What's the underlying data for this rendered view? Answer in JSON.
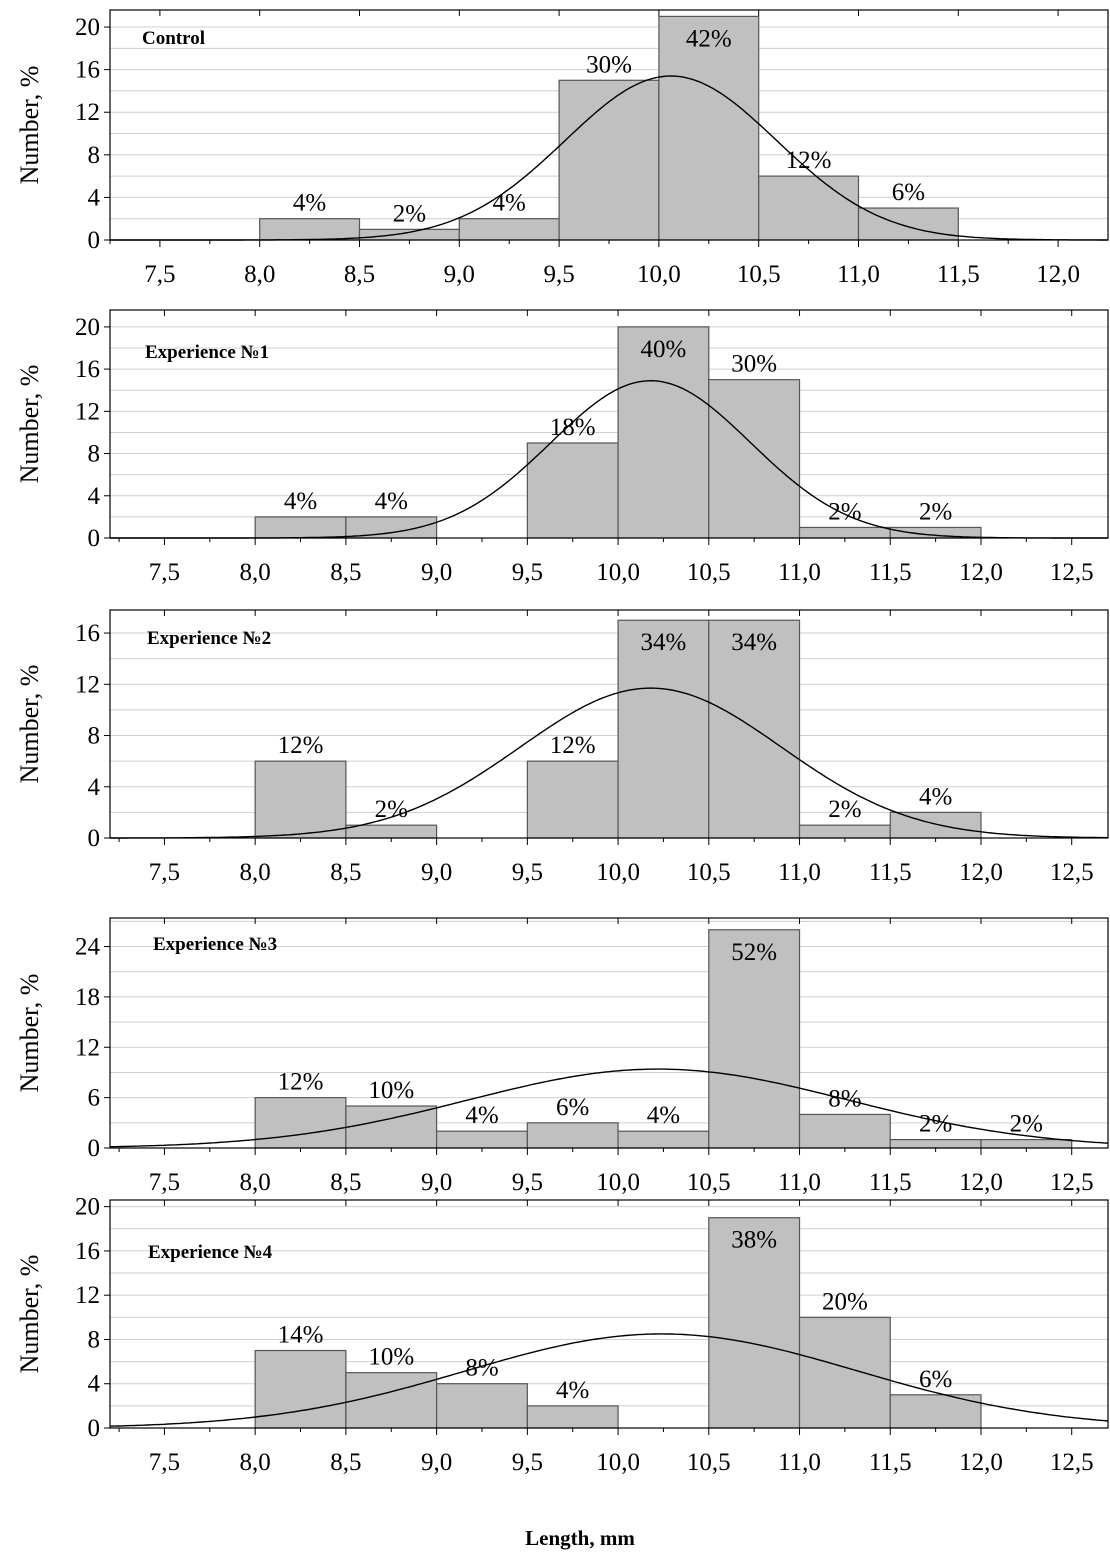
{
  "chart_data": [
    {
      "type": "bar",
      "title": "Control",
      "ylabel": "Number, %",
      "ylim": [
        0,
        21.6
      ],
      "yticks": [
        0,
        4,
        8,
        12,
        16,
        20
      ],
      "xlim": [
        7.25,
        12.25
      ],
      "xticks": [
        "7,5",
        "8,0",
        "8,5",
        "9,0",
        "9,5",
        "10,0",
        "10,5",
        "11,0",
        "11,5",
        "12,0"
      ],
      "bars": [
        {
          "range": [
            8.0,
            8.5
          ],
          "value": 2,
          "label": "4%"
        },
        {
          "range": [
            8.5,
            9.0
          ],
          "value": 1,
          "label": "2%"
        },
        {
          "range": [
            9.0,
            9.5
          ],
          "value": 2,
          "label": "4%"
        },
        {
          "range": [
            9.5,
            10.0
          ],
          "value": 15,
          "label": "30%"
        },
        {
          "range": [
            10.0,
            10.5
          ],
          "value": 21,
          "label": "42%"
        },
        {
          "range": [
            10.5,
            11.0
          ],
          "value": 6,
          "label": "12%"
        },
        {
          "range": [
            11.0,
            11.5
          ],
          "value": 3,
          "label": "6%"
        }
      ],
      "normal_curve": {
        "mean": 10.06,
        "sd": 0.53,
        "peak": 15.4
      }
    },
    {
      "type": "bar",
      "title": "Experience №1",
      "ylabel": "Number, %",
      "ylim": [
        0,
        21.6
      ],
      "yticks": [
        0,
        4,
        8,
        12,
        16,
        20
      ],
      "xlim": [
        7.2,
        12.7
      ],
      "xticks": [
        "7,5",
        "8,0",
        "8,5",
        "9,0",
        "9,5",
        "10,0",
        "10,5",
        "11,0",
        "11,5",
        "12,0",
        "12,5"
      ],
      "bars": [
        {
          "range": [
            8.0,
            8.5
          ],
          "value": 2,
          "label": "4%"
        },
        {
          "range": [
            8.5,
            9.0
          ],
          "value": 2,
          "label": "4%"
        },
        {
          "range": [
            9.5,
            10.0
          ],
          "value": 9,
          "label": "18%"
        },
        {
          "range": [
            10.0,
            10.5
          ],
          "value": 20,
          "label": "40%"
        },
        {
          "range": [
            10.5,
            11.0
          ],
          "value": 15,
          "label": "30%"
        },
        {
          "range": [
            11.0,
            11.5
          ],
          "value": 1,
          "label": "2%"
        },
        {
          "range": [
            11.5,
            12.0
          ],
          "value": 1,
          "label": "2%"
        }
      ],
      "normal_curve": {
        "mean": 10.18,
        "sd": 0.55,
        "peak": 14.9
      }
    },
    {
      "type": "bar",
      "title": "Experience №2",
      "ylabel": "Number, %",
      "ylim": [
        0,
        17.8
      ],
      "yticks": [
        0,
        4,
        8,
        12,
        16
      ],
      "xlim": [
        7.2,
        12.7
      ],
      "xticks": [
        "7,5",
        "8,0",
        "8,5",
        "9,0",
        "9,5",
        "10,0",
        "10,5",
        "11,0",
        "11,5",
        "12,0",
        "12,5"
      ],
      "bars": [
        {
          "range": [
            8.0,
            8.5
          ],
          "value": 6,
          "label": "12%"
        },
        {
          "range": [
            8.5,
            9.0
          ],
          "value": 1,
          "label": "2%"
        },
        {
          "range": [
            9.5,
            10.0
          ],
          "value": 6,
          "label": "12%"
        },
        {
          "range": [
            10.0,
            10.5
          ],
          "value": 17,
          "label": "34%"
        },
        {
          "range": [
            10.5,
            11.0
          ],
          "value": 17,
          "label": "34%"
        },
        {
          "range": [
            11.0,
            11.5
          ],
          "value": 1,
          "label": "2%"
        },
        {
          "range": [
            11.5,
            12.0
          ],
          "value": 2,
          "label": "4%"
        }
      ],
      "normal_curve": {
        "mean": 10.18,
        "sd": 0.72,
        "peak": 11.7
      }
    },
    {
      "type": "bar",
      "title": "Experience №3",
      "ylabel": "Number, %",
      "ylim": [
        0,
        27.4
      ],
      "yticks": [
        0,
        6,
        12,
        18,
        24
      ],
      "xlim": [
        7.2,
        12.7
      ],
      "xticks": [
        "7,5",
        "8,0",
        "8,5",
        "9,0",
        "9,5",
        "10,0",
        "10,5",
        "11,0",
        "11,5",
        "12,0",
        "12,5"
      ],
      "bars": [
        {
          "range": [
            8.0,
            8.5
          ],
          "value": 6,
          "label": "12%"
        },
        {
          "range": [
            8.5,
            9.0
          ],
          "value": 5,
          "label": "10%"
        },
        {
          "range": [
            9.0,
            9.5
          ],
          "value": 2,
          "label": "4%"
        },
        {
          "range": [
            9.5,
            10.0
          ],
          "value": 3,
          "label": "6%"
        },
        {
          "range": [
            10.0,
            10.5
          ],
          "value": 2,
          "label": "4%"
        },
        {
          "range": [
            10.5,
            11.0
          ],
          "value": 26,
          "label": "52%"
        },
        {
          "range": [
            11.0,
            11.5
          ],
          "value": 4,
          "label": "8%"
        },
        {
          "range": [
            11.5,
            12.0
          ],
          "value": 1,
          "label": "2%"
        },
        {
          "range": [
            12.0,
            12.5
          ],
          "value": 1,
          "label": "2%"
        }
      ],
      "normal_curve": {
        "mean": 10.22,
        "sd": 1.05,
        "peak": 9.4
      }
    },
    {
      "type": "bar",
      "title": "Experience №4",
      "ylabel": "Number, %",
      "ylim": [
        0,
        20.6
      ],
      "yticks": [
        0,
        4,
        8,
        12,
        16,
        20
      ],
      "xlim": [
        7.2,
        12.7
      ],
      "xticks": [
        "7,5",
        "8,0",
        "8,5",
        "9,0",
        "9,5",
        "10,0",
        "10,5",
        "11,0",
        "11,5",
        "12,0",
        "12,5"
      ],
      "bars": [
        {
          "range": [
            8.0,
            8.5
          ],
          "value": 7,
          "label": "14%"
        },
        {
          "range": [
            8.5,
            9.0
          ],
          "value": 5,
          "label": "10%"
        },
        {
          "range": [
            9.0,
            9.5
          ],
          "value": 4,
          "label": "8%"
        },
        {
          "range": [
            9.5,
            10.0
          ],
          "value": 2,
          "label": "4%"
        },
        {
          "range": [
            10.5,
            11.0
          ],
          "value": 19,
          "label": "38%"
        },
        {
          "range": [
            11.0,
            11.5
          ],
          "value": 10,
          "label": "20%"
        },
        {
          "range": [
            11.5,
            12.0
          ],
          "value": 3,
          "label": "6%"
        }
      ],
      "normal_curve": {
        "mean": 10.24,
        "sd": 1.08,
        "peak": 8.5
      }
    }
  ],
  "xlabel": "Length, mm",
  "colors": {
    "bar_fill": "#c0c0c0",
    "bar_stroke": "#555555",
    "grid": "#cfcfcf",
    "axis": "#000000",
    "curve": "#000000"
  }
}
